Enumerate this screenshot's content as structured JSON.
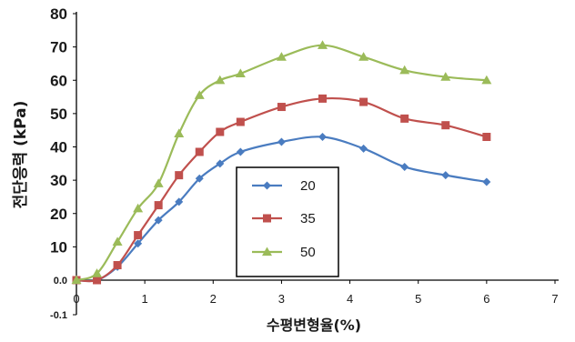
{
  "chart_data": {
    "type": "line",
    "title": "",
    "xlabel": "수평변형율(%)",
    "ylabel": "전단응력 (kPa)",
    "xlim": [
      0,
      7
    ],
    "ylim": [
      -0.1,
      80
    ],
    "x_ticks": [
      "0",
      "1",
      "2",
      "3",
      "4",
      "5",
      "6",
      "7"
    ],
    "y_ticks": [
      {
        "value": 80,
        "label": "80"
      },
      {
        "value": 70,
        "label": "70"
      },
      {
        "value": 60,
        "label": "60"
      },
      {
        "value": 50,
        "label": "50"
      },
      {
        "value": 40,
        "label": "40"
      },
      {
        "value": 30,
        "label": "30"
      },
      {
        "value": 20,
        "label": "20"
      },
      {
        "value": 10,
        "label": "10"
      },
      {
        "value": 0,
        "label": "0.0"
      },
      {
        "value": -0.1,
        "label": "-0.1"
      }
    ],
    "grid": false,
    "legend_position": "center-left",
    "series": [
      {
        "name": "20",
        "color": "#4a7cc0",
        "marker": "diamond",
        "x": [
          0,
          0.3,
          0.6,
          0.9,
          1.2,
          1.5,
          1.8,
          2.1,
          2.4,
          3.0,
          3.6,
          4.2,
          4.8,
          5.4,
          6.0
        ],
        "y": [
          0,
          0,
          4,
          11,
          18,
          23.5,
          30.5,
          35,
          38.5,
          41.5,
          43,
          39.5,
          34,
          31.5,
          29.5
        ]
      },
      {
        "name": "35",
        "color": "#c0504d",
        "marker": "square",
        "x": [
          0,
          0.3,
          0.6,
          0.9,
          1.2,
          1.5,
          1.8,
          2.1,
          2.4,
          3.0,
          3.6,
          4.2,
          4.8,
          5.4,
          6.0
        ],
        "y": [
          0,
          0,
          4.5,
          13.5,
          22.5,
          31.5,
          38.5,
          44.5,
          47.5,
          52,
          54.5,
          53.5,
          48.5,
          46.5,
          43
        ]
      },
      {
        "name": "50",
        "color": "#9bbb59",
        "marker": "triangle",
        "x": [
          0,
          0.3,
          0.6,
          0.9,
          1.2,
          1.5,
          1.8,
          2.1,
          2.4,
          3.0,
          3.6,
          4.2,
          4.8,
          5.4,
          6.0
        ],
        "y": [
          0,
          2,
          11.5,
          21.5,
          29,
          44,
          55.5,
          60,
          62,
          67,
          70.5,
          67,
          63,
          61,
          60
        ]
      }
    ]
  }
}
